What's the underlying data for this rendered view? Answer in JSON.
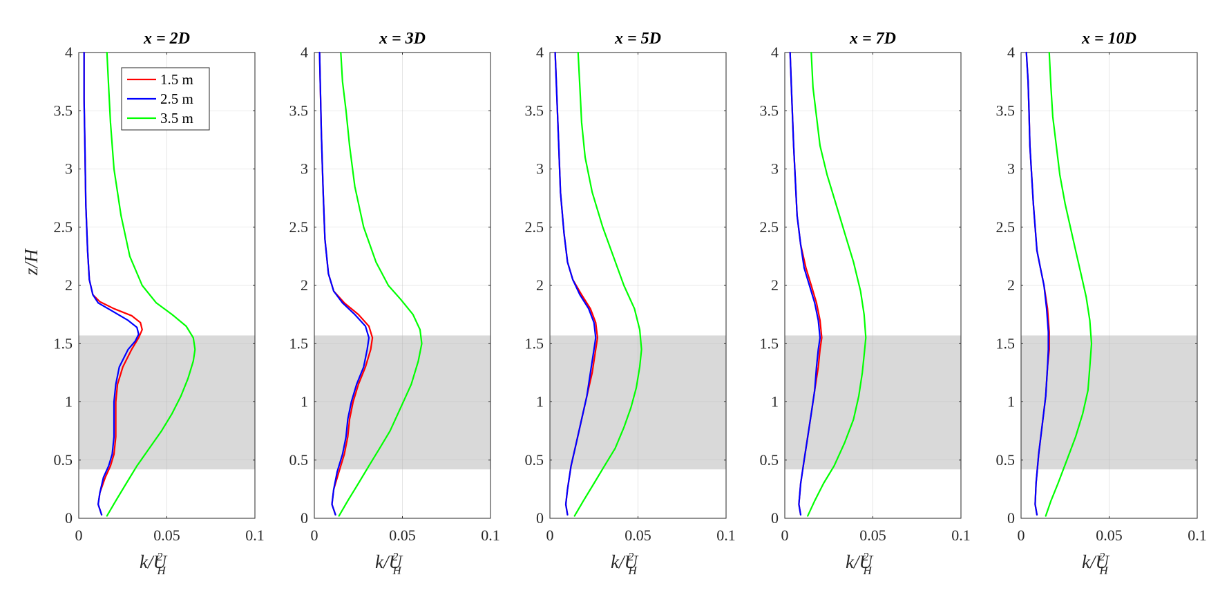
{
  "chart_data": [
    {
      "type": "line",
      "title": "x = 2D",
      "xlabel": "k/U_H^2",
      "ylabel": "z/H",
      "xlim": [
        0,
        0.1
      ],
      "ylim": [
        0,
        4
      ],
      "xticks": [
        "0",
        "0.05",
        "0.1"
      ],
      "yticks": [
        "0",
        "0.5",
        "1",
        "1.5",
        "2",
        "2.5",
        "3",
        "3.5",
        "4"
      ],
      "grid": true,
      "shaded_band": [
        0.42,
        1.57
      ],
      "legend": "top-left",
      "series": [
        {
          "name": "1.5 m",
          "color": "#ff0000",
          "x": [
            0.013,
            0.011,
            0.012,
            0.015,
            0.018,
            0.02,
            0.021,
            0.021,
            0.021,
            0.022,
            0.025,
            0.03,
            0.034,
            0.036,
            0.035,
            0.03,
            0.02,
            0.012,
            0.008,
            0.006,
            0.005,
            0.004,
            0.0035,
            0.003,
            0.003
          ],
          "y": [
            0.03,
            0.12,
            0.22,
            0.35,
            0.45,
            0.55,
            0.7,
            0.85,
            1.0,
            1.15,
            1.3,
            1.45,
            1.55,
            1.62,
            1.68,
            1.74,
            1.8,
            1.86,
            1.92,
            2.05,
            2.3,
            2.7,
            3.2,
            3.6,
            4.0
          ]
        },
        {
          "name": "2.5 m",
          "color": "#0000ff",
          "x": [
            0.013,
            0.011,
            0.012,
            0.014,
            0.017,
            0.019,
            0.02,
            0.02,
            0.02,
            0.021,
            0.023,
            0.028,
            0.032,
            0.034,
            0.033,
            0.028,
            0.019,
            0.011,
            0.008,
            0.006,
            0.005,
            0.004,
            0.0035,
            0.003,
            0.003
          ],
          "y": [
            0.03,
            0.12,
            0.22,
            0.35,
            0.45,
            0.55,
            0.7,
            0.85,
            1.0,
            1.15,
            1.3,
            1.45,
            1.52,
            1.58,
            1.64,
            1.7,
            1.78,
            1.85,
            1.92,
            2.05,
            2.3,
            2.7,
            3.2,
            3.6,
            4.0
          ]
        },
        {
          "name": "3.5 m",
          "color": "#00ff00",
          "x": [
            0.016,
            0.021,
            0.027,
            0.033,
            0.04,
            0.047,
            0.053,
            0.058,
            0.062,
            0.065,
            0.066,
            0.065,
            0.061,
            0.053,
            0.044,
            0.036,
            0.029,
            0.024,
            0.02,
            0.018,
            0.017,
            0.016
          ],
          "y": [
            0.02,
            0.15,
            0.3,
            0.45,
            0.6,
            0.75,
            0.9,
            1.05,
            1.2,
            1.35,
            1.45,
            1.55,
            1.65,
            1.75,
            1.85,
            2.0,
            2.25,
            2.6,
            3.0,
            3.4,
            3.7,
            4.0
          ]
        }
      ]
    },
    {
      "type": "line",
      "title": "x = 3D",
      "xlabel": "k/U_H^2",
      "ylabel": "",
      "xlim": [
        0,
        0.1
      ],
      "ylim": [
        0,
        4
      ],
      "xticks": [
        "0",
        "0.05",
        "0.1"
      ],
      "yticks": [
        "0",
        "0.5",
        "1",
        "1.5",
        "2",
        "2.5",
        "3",
        "3.5",
        "4"
      ],
      "grid": true,
      "shaded_band": [
        0.42,
        1.57
      ],
      "series": [
        {
          "name": "1.5 m",
          "color": "#ff0000",
          "x": [
            0.012,
            0.01,
            0.011,
            0.014,
            0.017,
            0.019,
            0.02,
            0.022,
            0.025,
            0.029,
            0.032,
            0.033,
            0.031,
            0.025,
            0.017,
            0.011,
            0.008,
            0.006,
            0.005,
            0.004,
            0.003
          ],
          "y": [
            0.03,
            0.12,
            0.25,
            0.4,
            0.55,
            0.7,
            0.85,
            1.0,
            1.15,
            1.3,
            1.45,
            1.55,
            1.65,
            1.75,
            1.85,
            1.95,
            2.1,
            2.4,
            2.8,
            3.3,
            4.0
          ]
        },
        {
          "name": "2.5 m",
          "color": "#0000ff",
          "x": [
            0.012,
            0.01,
            0.011,
            0.013,
            0.016,
            0.018,
            0.019,
            0.021,
            0.024,
            0.028,
            0.03,
            0.031,
            0.029,
            0.023,
            0.016,
            0.011,
            0.008,
            0.006,
            0.005,
            0.004,
            0.003
          ],
          "y": [
            0.03,
            0.12,
            0.25,
            0.4,
            0.55,
            0.7,
            0.85,
            1.0,
            1.15,
            1.3,
            1.45,
            1.55,
            1.65,
            1.75,
            1.85,
            1.95,
            2.1,
            2.4,
            2.8,
            3.3,
            4.0
          ]
        },
        {
          "name": "3.5 m",
          "color": "#00ff00",
          "x": [
            0.014,
            0.019,
            0.025,
            0.031,
            0.037,
            0.043,
            0.049,
            0.055,
            0.059,
            0.061,
            0.06,
            0.056,
            0.049,
            0.042,
            0.035,
            0.028,
            0.023,
            0.02,
            0.018,
            0.016,
            0.015
          ],
          "y": [
            0.02,
            0.15,
            0.3,
            0.45,
            0.6,
            0.75,
            0.95,
            1.15,
            1.35,
            1.5,
            1.62,
            1.75,
            1.88,
            2.0,
            2.2,
            2.5,
            2.85,
            3.2,
            3.5,
            3.75,
            4.0
          ]
        }
      ]
    },
    {
      "type": "line",
      "title": "x = 5D",
      "xlabel": "k/U_H^2",
      "ylabel": "",
      "xlim": [
        0,
        0.1
      ],
      "ylim": [
        0,
        4
      ],
      "xticks": [
        "0",
        "0.05",
        "0.1"
      ],
      "yticks": [
        "0",
        "0.5",
        "1",
        "1.5",
        "2",
        "2.5",
        "3",
        "3.5",
        "4"
      ],
      "grid": true,
      "shaded_band": [
        0.42,
        1.57
      ],
      "series": [
        {
          "name": "1.5 m",
          "color": "#ff0000",
          "x": [
            0.01,
            0.009,
            0.01,
            0.012,
            0.015,
            0.018,
            0.021,
            0.024,
            0.026,
            0.027,
            0.026,
            0.023,
            0.018,
            0.013,
            0.01,
            0.008,
            0.006,
            0.005,
            0.004,
            0.003
          ],
          "y": [
            0.03,
            0.12,
            0.25,
            0.45,
            0.65,
            0.85,
            1.05,
            1.25,
            1.45,
            1.55,
            1.68,
            1.8,
            1.92,
            2.05,
            2.2,
            2.45,
            2.8,
            3.2,
            3.6,
            4.0
          ]
        },
        {
          "name": "2.5 m",
          "color": "#0000ff",
          "x": [
            0.01,
            0.009,
            0.01,
            0.012,
            0.015,
            0.018,
            0.021,
            0.023,
            0.025,
            0.026,
            0.025,
            0.022,
            0.017,
            0.013,
            0.01,
            0.008,
            0.006,
            0.005,
            0.004,
            0.003
          ],
          "y": [
            0.03,
            0.12,
            0.25,
            0.45,
            0.65,
            0.85,
            1.05,
            1.25,
            1.45,
            1.55,
            1.68,
            1.8,
            1.92,
            2.05,
            2.2,
            2.45,
            2.8,
            3.2,
            3.6,
            4.0
          ]
        },
        {
          "name": "3.5 m",
          "color": "#00ff00",
          "x": [
            0.014,
            0.019,
            0.025,
            0.031,
            0.037,
            0.042,
            0.046,
            0.049,
            0.051,
            0.052,
            0.051,
            0.048,
            0.042,
            0.036,
            0.03,
            0.024,
            0.02,
            0.018,
            0.017,
            0.016
          ],
          "y": [
            0.02,
            0.15,
            0.3,
            0.45,
            0.6,
            0.78,
            0.95,
            1.12,
            1.3,
            1.45,
            1.62,
            1.8,
            2.0,
            2.25,
            2.5,
            2.8,
            3.1,
            3.4,
            3.7,
            4.0
          ]
        }
      ]
    },
    {
      "type": "line",
      "title": "x = 7D",
      "xlabel": "k/U_H^2",
      "ylabel": "",
      "xlim": [
        0,
        0.1
      ],
      "ylim": [
        0,
        4
      ],
      "xticks": [
        "0",
        "0.05",
        "0.1"
      ],
      "yticks": [
        "0",
        "0.5",
        "1",
        "1.5",
        "2",
        "2.5",
        "3",
        "3.5",
        "4"
      ],
      "grid": true,
      "shaded_band": [
        0.42,
        1.57
      ],
      "series": [
        {
          "name": "1.5 m",
          "color": "#ff0000",
          "x": [
            0.009,
            0.008,
            0.009,
            0.011,
            0.013,
            0.015,
            0.017,
            0.019,
            0.02,
            0.021,
            0.02,
            0.018,
            0.015,
            0.012,
            0.009,
            0.007,
            0.006,
            0.005,
            0.004,
            0.003
          ],
          "y": [
            0.03,
            0.12,
            0.3,
            0.5,
            0.7,
            0.9,
            1.1,
            1.3,
            1.45,
            1.55,
            1.7,
            1.85,
            2.0,
            2.15,
            2.35,
            2.6,
            2.9,
            3.2,
            3.6,
            4.0
          ]
        },
        {
          "name": "2.5 m",
          "color": "#0000ff",
          "x": [
            0.009,
            0.008,
            0.009,
            0.011,
            0.013,
            0.015,
            0.017,
            0.018,
            0.019,
            0.02,
            0.019,
            0.017,
            0.014,
            0.011,
            0.009,
            0.007,
            0.006,
            0.005,
            0.004,
            0.003
          ],
          "y": [
            0.03,
            0.12,
            0.3,
            0.5,
            0.7,
            0.9,
            1.1,
            1.3,
            1.45,
            1.55,
            1.7,
            1.85,
            2.0,
            2.15,
            2.35,
            2.6,
            2.9,
            3.2,
            3.6,
            4.0
          ]
        },
        {
          "name": "3.5 m",
          "color": "#00ff00",
          "x": [
            0.013,
            0.017,
            0.022,
            0.028,
            0.034,
            0.039,
            0.042,
            0.044,
            0.045,
            0.046,
            0.045,
            0.043,
            0.039,
            0.034,
            0.029,
            0.024,
            0.02,
            0.018,
            0.016,
            0.015
          ],
          "y": [
            0.02,
            0.15,
            0.3,
            0.45,
            0.65,
            0.85,
            1.05,
            1.25,
            1.4,
            1.55,
            1.75,
            1.95,
            2.2,
            2.45,
            2.7,
            2.95,
            3.2,
            3.45,
            3.7,
            4.0
          ]
        }
      ]
    },
    {
      "type": "line",
      "title": "x = 10D",
      "xlabel": "k/U_H^2",
      "ylabel": "",
      "xlim": [
        0,
        0.1
      ],
      "ylim": [
        0,
        4
      ],
      "xticks": [
        "0",
        "0.05",
        "0.1"
      ],
      "yticks": [
        "0",
        "0.5",
        "1",
        "1.5",
        "2",
        "2.5",
        "3",
        "3.5",
        "4"
      ],
      "grid": true,
      "shaded_band": [
        0.42,
        1.57
      ],
      "series": [
        {
          "name": "1.5 m",
          "color": "#ff0000",
          "x": [
            0.009,
            0.008,
            0.0085,
            0.01,
            0.012,
            0.014,
            0.015,
            0.016,
            0.016,
            0.015,
            0.013,
            0.011,
            0.009,
            0.008,
            0.007,
            0.006,
            0.005,
            0.0045,
            0.004,
            0.003
          ],
          "y": [
            0.03,
            0.12,
            0.3,
            0.55,
            0.8,
            1.05,
            1.3,
            1.45,
            1.6,
            1.8,
            2.0,
            2.15,
            2.3,
            2.5,
            2.7,
            2.95,
            3.2,
            3.5,
            3.75,
            4.0
          ]
        },
        {
          "name": "2.5 m",
          "color": "#0000ff",
          "x": [
            0.009,
            0.008,
            0.0085,
            0.01,
            0.012,
            0.014,
            0.015,
            0.0155,
            0.0155,
            0.0145,
            0.013,
            0.011,
            0.009,
            0.008,
            0.007,
            0.006,
            0.005,
            0.0045,
            0.004,
            0.003
          ],
          "y": [
            0.03,
            0.12,
            0.3,
            0.55,
            0.8,
            1.05,
            1.3,
            1.45,
            1.6,
            1.8,
            2.0,
            2.15,
            2.3,
            2.5,
            2.7,
            2.95,
            3.2,
            3.5,
            3.75,
            4.0
          ]
        },
        {
          "name": "3.5 m",
          "color": "#00ff00",
          "x": [
            0.014,
            0.017,
            0.021,
            0.026,
            0.031,
            0.035,
            0.038,
            0.039,
            0.04,
            0.039,
            0.037,
            0.034,
            0.031,
            0.028,
            0.025,
            0.022,
            0.02,
            0.018,
            0.017,
            0.016
          ],
          "y": [
            0.02,
            0.15,
            0.3,
            0.5,
            0.7,
            0.9,
            1.1,
            1.3,
            1.5,
            1.7,
            1.9,
            2.1,
            2.3,
            2.5,
            2.7,
            2.95,
            3.2,
            3.45,
            3.7,
            4.0
          ]
        }
      ]
    }
  ]
}
